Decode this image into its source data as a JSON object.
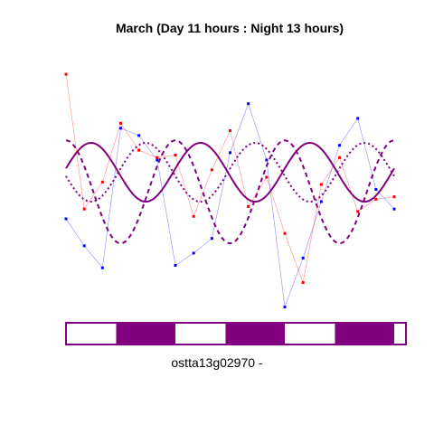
{
  "chart_data": {
    "type": "line",
    "title": "March (Day 11 hours : Night 13 hours)",
    "gene_label": "ostta13g02970 -",
    "xlim": [
      0,
      72
    ],
    "ylim": [
      0,
      1
    ],
    "colors": {
      "blue": "#0000ff",
      "red": "#ff0000",
      "model": "#800080",
      "light_bar": "#ffffff",
      "dark_bar": "#800080"
    },
    "series": [
      {
        "color": "blue",
        "x": [
          0,
          4,
          8,
          12,
          16,
          20,
          24,
          28,
          32,
          36,
          40,
          44,
          48,
          52,
          56,
          60,
          64,
          68,
          72
        ],
        "y": [
          0.38,
          0.27,
          0.18,
          0.75,
          0.72,
          0.62,
          0.19,
          0.24,
          0.3,
          0.65,
          0.85,
          0.62,
          0.02,
          0.22,
          0.45,
          0.68,
          0.79,
          0.5,
          0.42
        ]
      },
      {
        "color": "red",
        "x": [
          0,
          4,
          8,
          12,
          16,
          20,
          24,
          28,
          32,
          36,
          40,
          44,
          48,
          52,
          56,
          60,
          64,
          68,
          72
        ],
        "y": [
          0.97,
          0.42,
          0.53,
          0.77,
          0.66,
          0.63,
          0.64,
          0.39,
          0.58,
          0.74,
          0.43,
          0.55,
          0.32,
          0.12,
          0.52,
          0.63,
          0.41,
          0.46,
          0.47
        ]
      }
    ],
    "models": [
      {
        "style": "solid",
        "period": 24,
        "mean": 0.57,
        "amp": 0.12,
        "peak_hour": 5.5
      },
      {
        "style": "dotted",
        "period": 24,
        "mean": 0.57,
        "amp": 0.12,
        "peak_hour": 17.5
      },
      {
        "style": "dashed",
        "period": 24,
        "mean": 0.49,
        "amp": 0.21,
        "peak_hour": 0
      }
    ],
    "photoperiod_bar": [
      {
        "phase": "light",
        "start": 0,
        "end": 11
      },
      {
        "phase": "dark",
        "start": 11,
        "end": 24
      },
      {
        "phase": "light",
        "start": 24,
        "end": 35
      },
      {
        "phase": "dark",
        "start": 35,
        "end": 48
      },
      {
        "phase": "light",
        "start": 48,
        "end": 59
      },
      {
        "phase": "dark",
        "start": 59,
        "end": 72
      }
    ],
    "grid": false,
    "legend": "none"
  }
}
